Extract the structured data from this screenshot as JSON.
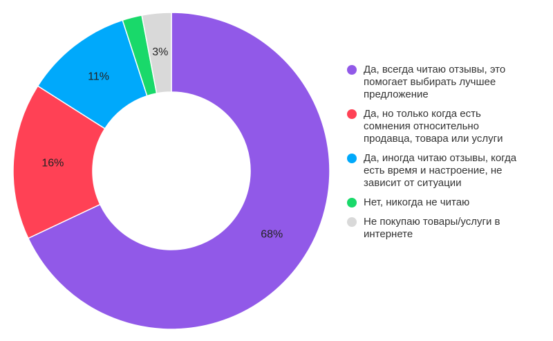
{
  "chart_data": {
    "type": "donut",
    "categories": [
      "Да, всегда читаю отзывы, это помогает выбирать лучшее предложение",
      "Да, но только когда есть сомнения относительно продавца, товара или услуги",
      "Да, иногда читаю отзывы, когда есть время и настроение, не зависит от ситуации",
      "Нет, никогда не читаю",
      "Не покупаю товары/услуги в интернете"
    ],
    "values": [
      68,
      16,
      11,
      2,
      3
    ],
    "value_labels": [
      "68%",
      "16%",
      "11%",
      null,
      "3%"
    ],
    "colors": [
      "#9159e8",
      "#ff4155",
      "#00a9fb",
      "#19d96a",
      "#d9d9d9"
    ],
    "legend": "right"
  }
}
